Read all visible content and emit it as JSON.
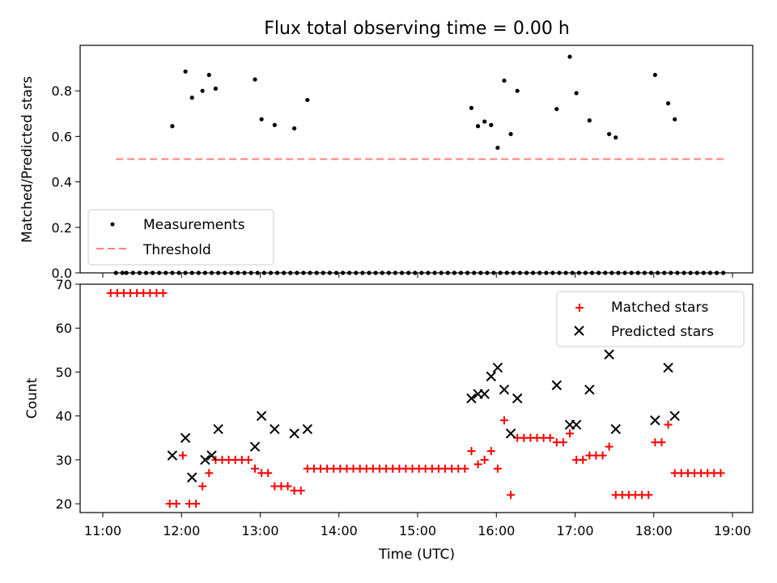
{
  "chart_data": [
    {
      "type": "scatter",
      "title": "Flux total observing time = 0.00 h",
      "xlabel": "",
      "ylabel": "Matched/Predicted stars",
      "xlim": [
        "11:00",
        "19:00"
      ],
      "ylim": [
        0,
        1.0
      ],
      "yticks": [
        "0.0",
        "0.2",
        "0.4",
        "0.6",
        "0.8"
      ],
      "legend": {
        "placement": "lower-left",
        "entries": [
          "Measurements",
          "Threshold"
        ]
      },
      "threshold": {
        "name": "Threshold",
        "value": 0.5,
        "x_start": "11:10",
        "x_end": "18:54",
        "color": "#ff7f7f"
      },
      "series": [
        {
          "name": "Measurements",
          "color": "#000000",
          "x": [
            "11:10",
            "11:15",
            "11:18",
            "11:23",
            "11:28",
            "11:33",
            "11:38",
            "11:43",
            "11:48",
            "11:53",
            "11:58",
            "12:03",
            "12:08",
            "12:13",
            "12:18",
            "12:23",
            "12:28",
            "12:33",
            "12:38",
            "12:43",
            "12:48",
            "12:53",
            "12:58",
            "13:03",
            "13:08",
            "13:13",
            "13:18",
            "13:23",
            "13:28",
            "13:33",
            "13:38",
            "13:43",
            "13:48",
            "13:53",
            "13:58",
            "14:03",
            "14:08",
            "14:13",
            "14:18",
            "14:23",
            "14:28",
            "14:33",
            "14:38",
            "14:43",
            "14:48",
            "14:53",
            "14:58",
            "15:03",
            "15:08",
            "15:13",
            "15:18",
            "15:23",
            "15:28",
            "15:33",
            "15:38",
            "15:43",
            "15:48",
            "15:53",
            "15:58",
            "16:03",
            "16:08",
            "16:13",
            "16:18",
            "16:23",
            "16:28",
            "16:33",
            "16:38",
            "16:43",
            "16:48",
            "16:53",
            "16:58",
            "17:03",
            "17:08",
            "17:13",
            "17:18",
            "17:23",
            "17:28",
            "17:33",
            "17:38",
            "17:43",
            "17:48",
            "17:53",
            "17:58",
            "18:03",
            "18:08",
            "18:13",
            "18:18",
            "18:23",
            "18:28",
            "18:33",
            "18:38",
            "18:43",
            "18:48",
            "18:53",
            "11:53",
            "12:03",
            "12:08",
            "12:16",
            "12:21",
            "12:26",
            "12:56",
            "13:01",
            "13:11",
            "13:26",
            "13:36",
            "15:41",
            "15:46",
            "15:51",
            "15:56",
            "16:01",
            "16:06",
            "16:11",
            "16:16",
            "16:46",
            "16:56",
            "17:01",
            "17:11",
            "17:26",
            "17:31",
            "18:01",
            "18:11",
            "18:16"
          ],
          "y": [
            0,
            0,
            0,
            0,
            0,
            0,
            0,
            0,
            0,
            0,
            0,
            0,
            0,
            0,
            0,
            0,
            0,
            0,
            0,
            0,
            0,
            0,
            0,
            0,
            0,
            0,
            0,
            0,
            0,
            0,
            0,
            0,
            0,
            0,
            0,
            0,
            0,
            0,
            0,
            0,
            0,
            0,
            0,
            0,
            0,
            0,
            0,
            0,
            0,
            0,
            0,
            0,
            0,
            0,
            0,
            0,
            0,
            0,
            0,
            0,
            0,
            0,
            0,
            0,
            0,
            0,
            0,
            0,
            0,
            0,
            0,
            0,
            0,
            0,
            0,
            0,
            0,
            0,
            0,
            0,
            0,
            0,
            0,
            0,
            0,
            0,
            0,
            0,
            0,
            0,
            0,
            0,
            0,
            0,
            0.645,
            0.885,
            0.77,
            0.8,
            0.87,
            0.81,
            0.85,
            0.675,
            0.65,
            0.635,
            0.76,
            0.725,
            0.645,
            0.665,
            0.65,
            0.55,
            0.845,
            0.61,
            0.8,
            0.72,
            0.95,
            0.79,
            0.67,
            0.61,
            0.595,
            0.87,
            0.745,
            0.675
          ]
        }
      ]
    },
    {
      "type": "scatter",
      "title": "",
      "xlabel": "Time (UTC)",
      "ylabel": "Count",
      "xlim": [
        "11:00",
        "19:00"
      ],
      "ylim": [
        18,
        70
      ],
      "xticks": [
        "11:00",
        "12:00",
        "13:00",
        "14:00",
        "15:00",
        "16:00",
        "17:00",
        "18:00",
        "19:00"
      ],
      "yticks": [
        "20",
        "30",
        "40",
        "50",
        "60",
        "70"
      ],
      "legend": {
        "placement": "top-right",
        "entries": [
          "Matched stars",
          "Predicted stars"
        ]
      },
      "series": [
        {
          "name": "Matched stars",
          "marker": "+",
          "color": "#ff0000",
          "x": [
            "11:06",
            "11:11",
            "11:16",
            "11:21",
            "11:26",
            "11:31",
            "11:36",
            "11:41",
            "11:46",
            "11:51",
            "11:56",
            "12:01",
            "12:06",
            "12:11",
            "12:16",
            "12:21",
            "12:26",
            "12:31",
            "12:36",
            "12:41",
            "12:46",
            "12:51",
            "12:56",
            "13:01",
            "13:06",
            "13:11",
            "13:16",
            "13:21",
            "13:26",
            "13:31",
            "13:36",
            "13:41",
            "13:46",
            "13:51",
            "13:56",
            "14:01",
            "14:06",
            "14:11",
            "14:16",
            "14:21",
            "14:26",
            "14:31",
            "14:36",
            "14:41",
            "14:46",
            "14:51",
            "14:56",
            "15:01",
            "15:06",
            "15:11",
            "15:16",
            "15:21",
            "15:26",
            "15:31",
            "15:36",
            "15:41",
            "15:46",
            "15:51",
            "15:56",
            "16:01",
            "16:06",
            "16:11",
            "16:16",
            "16:21",
            "16:26",
            "16:31",
            "16:36",
            "16:41",
            "16:46",
            "16:51",
            "16:56",
            "17:01",
            "17:06",
            "17:11",
            "17:16",
            "17:21",
            "17:26",
            "17:31",
            "17:36",
            "17:41",
            "17:46",
            "17:51",
            "17:56",
            "18:01",
            "18:06",
            "18:11",
            "18:16",
            "18:21",
            "18:26",
            "18:31",
            "18:36",
            "18:41",
            "18:46",
            "18:51"
          ],
          "y": [
            68,
            68,
            68,
            68,
            68,
            68,
            68,
            68,
            68,
            20,
            20,
            31,
            20,
            20,
            24,
            27,
            30,
            30,
            30,
            30,
            30,
            30,
            28,
            27,
            27,
            24,
            24,
            24,
            23,
            23,
            28,
            28,
            28,
            28,
            28,
            28,
            28,
            28,
            28,
            28,
            28,
            28,
            28,
            28,
            28,
            28,
            28,
            28,
            28,
            28,
            28,
            28,
            28,
            28,
            28,
            32,
            29,
            30,
            32,
            28,
            39,
            22,
            35,
            35,
            35,
            35,
            35,
            35,
            34,
            34,
            36,
            30,
            30,
            31,
            31,
            31,
            33,
            22,
            22,
            22,
            22,
            22,
            22,
            34,
            34,
            38,
            27,
            27,
            27,
            27,
            27,
            27,
            27,
            27
          ]
        },
        {
          "name": "Predicted stars",
          "marker": "x",
          "color": "#000000",
          "x": [
            "11:53",
            "12:03",
            "12:08",
            "12:18",
            "12:23",
            "12:28",
            "12:56",
            "13:01",
            "13:11",
            "13:26",
            "13:36",
            "15:41",
            "15:46",
            "15:51",
            "15:56",
            "16:01",
            "16:06",
            "16:11",
            "16:16",
            "16:46",
            "16:56",
            "17:01",
            "17:11",
            "17:26",
            "17:31",
            "18:01",
            "18:11",
            "18:16"
          ],
          "y": [
            31,
            35,
            26,
            30,
            31,
            37,
            33,
            40,
            37,
            36,
            37,
            44,
            45,
            45,
            49,
            51,
            46,
            36,
            44,
            47,
            38,
            38,
            46,
            54,
            37,
            39,
            51,
            40
          ]
        }
      ]
    }
  ]
}
